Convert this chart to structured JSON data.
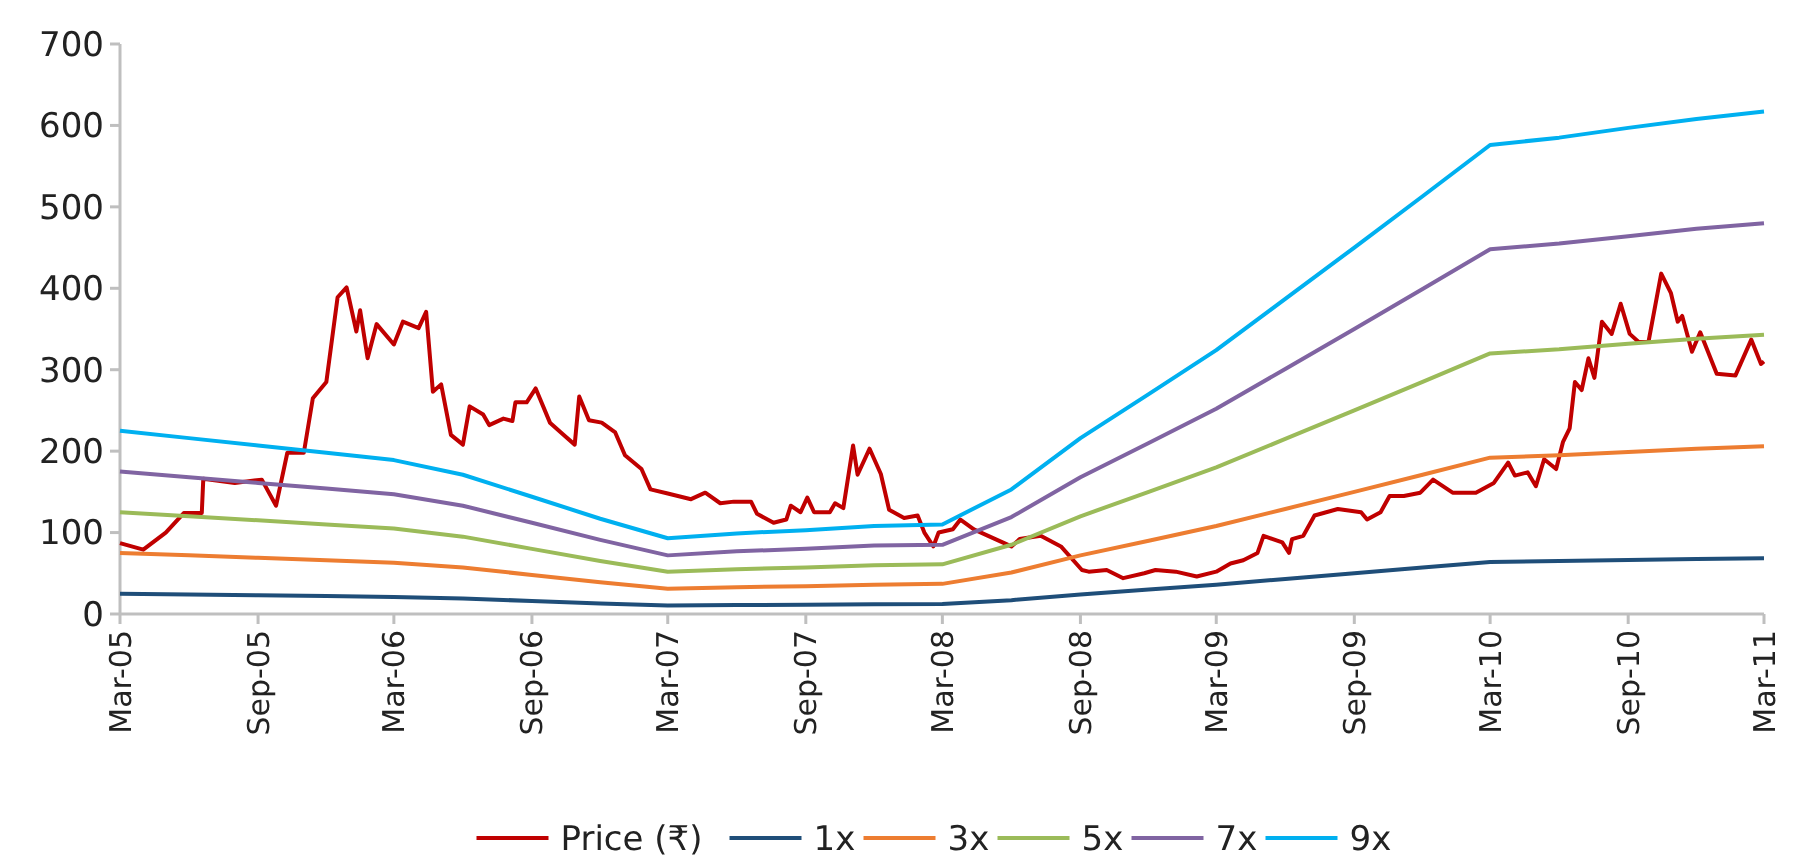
{
  "chart_data": {
    "type": "line",
    "xlim": [
      "2005-03",
      "2011-03"
    ],
    "xticks": [
      {
        "value": "2005-03",
        "label": "Mar-05"
      },
      {
        "value": "2005-09",
        "label": "Sep-05"
      },
      {
        "value": "2006-03",
        "label": "Mar-06"
      },
      {
        "value": "2006-09",
        "label": "Sep-06"
      },
      {
        "value": "2007-03",
        "label": "Mar-07"
      },
      {
        "value": "2007-09",
        "label": "Sep-07"
      },
      {
        "value": "2008-03",
        "label": "Mar-08"
      },
      {
        "value": "2008-09",
        "label": "Sep-08"
      },
      {
        "value": "2009-03",
        "label": "Mar-09"
      },
      {
        "value": "2009-09",
        "label": "Sep-09"
      },
      {
        "value": "2010-03",
        "label": "Mar-10"
      },
      {
        "value": "2010-09",
        "label": "Sep-10"
      },
      {
        "value": "2011-03",
        "label": "Mar-11"
      }
    ],
    "ylim": [
      0,
      700
    ],
    "yticks": [
      0,
      100,
      200,
      300,
      400,
      500,
      600,
      700
    ],
    "grid": false,
    "legend": "bottom",
    "marker": "none",
    "line_style": "solid",
    "series": [
      {
        "name": "Price (₹)",
        "color": "#c00000",
        "x": [
          "2005-03-01",
          "2005-04-01",
          "2005-05-01",
          "2005-05-25",
          "2005-06-18",
          "2005-06-20",
          "2005-08-01",
          "2005-09-06",
          "2005-09-25",
          "2005-10-10",
          "2005-11-01",
          "2005-11-13",
          "2005-12-01",
          "2005-12-16",
          "2005-12-28",
          "2006-01-10",
          "2006-01-15",
          "2006-01-25",
          "2006-02-06",
          "2006-03-01",
          "2006-03-13",
          "2006-04-03",
          "2006-04-13",
          "2006-04-22",
          "2006-05-03",
          "2006-05-16",
          "2006-06-01",
          "2006-06-10",
          "2006-06-28",
          "2006-07-06",
          "2006-07-25",
          "2006-08-06",
          "2006-08-10",
          "2006-08-25",
          "2006-09-06",
          "2006-09-25",
          "2006-10-13",
          "2006-10-28",
          "2006-11-03",
          "2006-11-16",
          "2006-12-03",
          "2006-12-21",
          "2007-01-03",
          "2007-01-25",
          "2007-02-06",
          "2007-03-01",
          "2007-04-01",
          "2007-04-20",
          "2007-05-10",
          "2007-05-28",
          "2007-06-20",
          "2007-06-28",
          "2007-07-20",
          "2007-08-06",
          "2007-08-12",
          "2007-08-25",
          "2007-09-03",
          "2007-09-12",
          "2007-10-03",
          "2007-10-10",
          "2007-10-21",
          "2007-11-03",
          "2007-11-09",
          "2007-11-25",
          "2007-12-10",
          "2007-12-21",
          "2008-01-10",
          "2008-01-28",
          "2008-02-06",
          "2008-02-18",
          "2008-02-25",
          "2008-03-15",
          "2008-03-25",
          "2008-04-12",
          "2008-05-01",
          "2008-06-01",
          "2008-06-12",
          "2008-07-10",
          "2008-08-06",
          "2008-09-03",
          "2008-09-12",
          "2008-10-06",
          "2008-10-28",
          "2008-11-25",
          "2008-12-10",
          "2009-01-06",
          "2009-02-03",
          "2009-03-01",
          "2009-03-20",
          "2009-04-06",
          "2009-04-25",
          "2009-05-03",
          "2009-05-28",
          "2009-06-06",
          "2009-06-10",
          "2009-06-25",
          "2009-07-10",
          "2009-08-10",
          "2009-09-10",
          "2009-09-18",
          "2009-10-06",
          "2009-10-18",
          "2009-11-06",
          "2009-11-28",
          "2009-12-15",
          "2010-01-10",
          "2010-02-10",
          "2010-03-06",
          "2010-03-25",
          "2010-04-03",
          "2010-04-20",
          "2010-05-01",
          "2010-05-12",
          "2010-05-28",
          "2010-06-06",
          "2010-06-15",
          "2010-06-22",
          "2010-07-01",
          "2010-07-10",
          "2010-07-18",
          "2010-07-28",
          "2010-08-10",
          "2010-08-22",
          "2010-09-03",
          "2010-09-15",
          "2010-09-28",
          "2010-10-15",
          "2010-10-28",
          "2010-11-06",
          "2010-11-12",
          "2010-11-25",
          "2010-12-06",
          "2010-12-28",
          "2011-01-22",
          "2011-02-12",
          "2011-02-25",
          "2011-03-01"
        ],
        "values": [
          87,
          79,
          100,
          124,
          124,
          166,
          161,
          165,
          133,
          198,
          198,
          265,
          285,
          389,
          401,
          347,
          373,
          314,
          356,
          331,
          359,
          351,
          371,
          273,
          282,
          220,
          208,
          255,
          245,
          232,
          240,
          237,
          260,
          260,
          277,
          235,
          220,
          208,
          267,
          238,
          235,
          223,
          195,
          178,
          153,
          148,
          141,
          149,
          136,
          138,
          138,
          123,
          112,
          116,
          133,
          125,
          143,
          125,
          125,
          136,
          130,
          207,
          171,
          203,
          172,
          128,
          118,
          121,
          100,
          83,
          100,
          104,
          116,
          104,
          96,
          83,
          92,
          96,
          83,
          54,
          52,
          54,
          44,
          50,
          54,
          52,
          46,
          52,
          62,
          66,
          75,
          96,
          88,
          75,
          92,
          96,
          121,
          129,
          125,
          116,
          125,
          145,
          145,
          149,
          165,
          149,
          149,
          161,
          186,
          170,
          174,
          157,
          190,
          178,
          211,
          228,
          285,
          275,
          314,
          290,
          359,
          344,
          381,
          344,
          334,
          334,
          418,
          394,
          359,
          366,
          322,
          346,
          295,
          293,
          337,
          307,
          310
        ]
      },
      {
        "name": "1x",
        "color": "#1f4e79",
        "x": [
          "2005-03",
          "2005-06",
          "2005-09",
          "2005-12",
          "2006-03",
          "2006-06",
          "2006-09",
          "2006-12",
          "2007-03",
          "2007-06",
          "2007-09",
          "2007-12",
          "2008-03",
          "2008-06",
          "2008-09",
          "2008-12",
          "2009-03",
          "2009-06",
          "2009-09",
          "2009-12",
          "2010-03",
          "2010-06",
          "2010-09",
          "2010-12",
          "2011-03"
        ],
        "values": [
          25,
          24,
          23,
          22,
          21,
          19,
          16,
          13,
          10.3,
          11,
          11.4,
          12,
          12.2,
          17,
          24,
          30,
          36,
          43,
          50,
          57,
          64,
          65,
          66.3,
          67.5,
          68.6
        ]
      },
      {
        "name": "3x",
        "color": "#ed7d31",
        "x": [
          "2005-03",
          "2005-06",
          "2005-09",
          "2005-12",
          "2006-03",
          "2006-06",
          "2006-09",
          "2006-12",
          "2007-03",
          "2007-06",
          "2007-09",
          "2007-12",
          "2008-03",
          "2008-06",
          "2008-09",
          "2008-12",
          "2009-03",
          "2009-06",
          "2009-09",
          "2009-12",
          "2010-03",
          "2010-06",
          "2010-09",
          "2010-12",
          "2011-03"
        ],
        "values": [
          75,
          72,
          69,
          66,
          63,
          57,
          48,
          39,
          31,
          33,
          34,
          36,
          37,
          51,
          72,
          90,
          108,
          129,
          150,
          171,
          192,
          195,
          199,
          203,
          206
        ]
      },
      {
        "name": "5x",
        "color": "#9bbb59",
        "x": [
          "2005-03",
          "2005-06",
          "2005-09",
          "2005-12",
          "2006-03",
          "2006-06",
          "2006-09",
          "2006-12",
          "2007-03",
          "2007-06",
          "2007-09",
          "2007-12",
          "2008-03",
          "2008-06",
          "2008-09",
          "2008-12",
          "2009-03",
          "2009-06",
          "2009-09",
          "2009-12",
          "2010-03",
          "2010-06",
          "2010-09",
          "2010-12",
          "2011-03"
        ],
        "values": [
          125,
          120,
          115,
          110,
          105,
          95,
          80,
          65,
          52,
          55,
          57,
          60,
          61,
          85,
          120,
          150,
          180,
          215,
          250,
          285,
          320,
          325,
          332,
          338,
          343
        ]
      },
      {
        "name": "7x",
        "color": "#8064a2",
        "x": [
          "2005-03",
          "2005-06",
          "2005-09",
          "2005-12",
          "2006-03",
          "2006-06",
          "2006-09",
          "2006-12",
          "2007-03",
          "2007-06",
          "2007-09",
          "2007-12",
          "2008-03",
          "2008-06",
          "2008-09",
          "2008-12",
          "2009-03",
          "2009-06",
          "2009-09",
          "2009-12",
          "2010-03",
          "2010-06",
          "2010-09",
          "2010-12",
          "2011-03"
        ],
        "values": [
          175,
          168,
          161,
          154,
          147,
          133,
          112,
          91,
          72,
          77,
          80,
          84,
          85,
          119,
          168,
          210,
          252,
          301,
          350,
          399,
          448,
          455,
          464,
          473,
          480
        ]
      },
      {
        "name": "9x",
        "color": "#00b0f0",
        "x": [
          "2005-03",
          "2005-06",
          "2005-09",
          "2005-12",
          "2006-03",
          "2006-06",
          "2006-09",
          "2006-12",
          "2007-03",
          "2007-06",
          "2007-09",
          "2007-12",
          "2008-03",
          "2008-06",
          "2008-09",
          "2008-12",
          "2009-03",
          "2009-06",
          "2009-09",
          "2009-12",
          "2010-03",
          "2010-06",
          "2010-09",
          "2010-12",
          "2011-03"
        ],
        "values": [
          225,
          216,
          207,
          198,
          189,
          171,
          144,
          117,
          93,
          99,
          103,
          108,
          110,
          153,
          216,
          270,
          324,
          387,
          450,
          513,
          576,
          585,
          597,
          608,
          617
        ]
      }
    ]
  }
}
